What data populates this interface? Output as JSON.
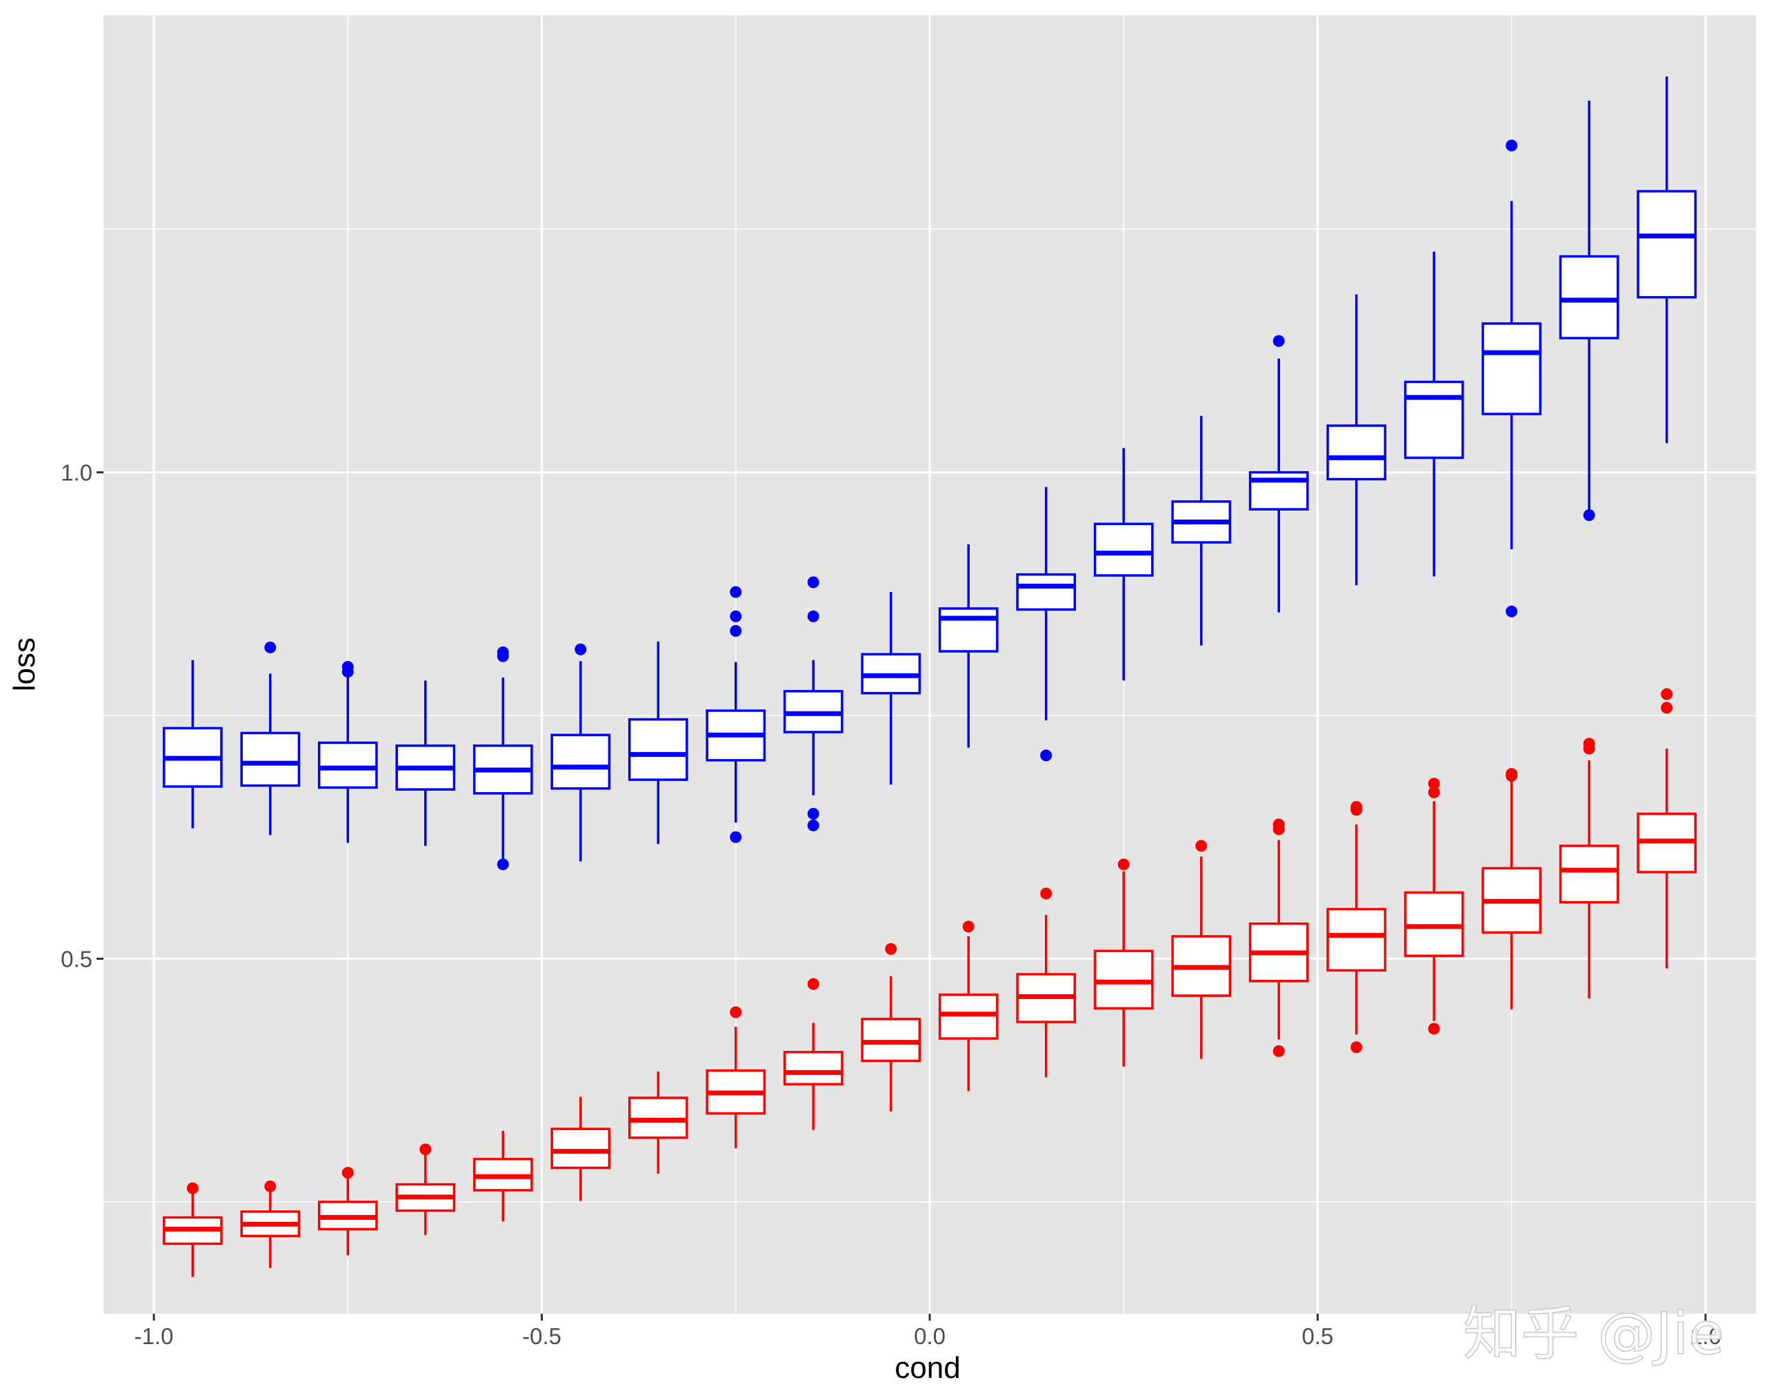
{
  "chart_data": {
    "type": "boxplot",
    "xlabel": "cond",
    "ylabel": "loss",
    "xlim": [
      -1.065,
      1.065
    ],
    "ylim": [
      0.135,
      1.47
    ],
    "x_ticks": [
      -1.0,
      -0.5,
      0.0,
      0.5,
      1.0
    ],
    "x_tick_labels": [
      "-1.0",
      "-0.5",
      "0.0",
      "0.5",
      "1.0"
    ],
    "y_ticks": [
      0.5,
      1.0
    ],
    "y_tick_labels": [
      "0.5",
      "1.0"
    ],
    "y_minor_gridlines": [
      0.25,
      0.75,
      1.25
    ],
    "grid": true,
    "background": "#e5e5e5",
    "gridline_color": "#ffffff",
    "box_fill": "#ffffff",
    "x_positions": [
      -0.95,
      -0.85,
      -0.75,
      -0.65,
      -0.55,
      -0.45,
      -0.35,
      -0.25,
      -0.15,
      -0.05,
      0.05,
      0.15,
      0.25,
      0.35,
      0.45,
      0.55,
      0.65,
      0.75,
      0.85,
      0.95
    ],
    "box_width": 0.037,
    "series": [
      {
        "color": "#0000ff",
        "boxes": [
          {
            "whisker_low": 0.634,
            "q1": 0.677,
            "median": 0.706,
            "q3": 0.737,
            "whisker_high": 0.807,
            "outliers": []
          },
          {
            "whisker_low": 0.627,
            "q1": 0.678,
            "median": 0.701,
            "q3": 0.732,
            "whisker_high": 0.793,
            "outliers": [
              0.82
            ]
          },
          {
            "whisker_low": 0.619,
            "q1": 0.676,
            "median": 0.696,
            "q3": 0.722,
            "whisker_high": 0.79,
            "outliers": [
              0.795,
              0.8
            ]
          },
          {
            "whisker_low": 0.616,
            "q1": 0.674,
            "median": 0.696,
            "q3": 0.719,
            "whisker_high": 0.786,
            "outliers": []
          },
          {
            "whisker_low": 0.597,
            "q1": 0.67,
            "median": 0.694,
            "q3": 0.719,
            "whisker_high": 0.789,
            "outliers": [
              0.597,
              0.811,
              0.815
            ]
          },
          {
            "whisker_low": 0.6,
            "q1": 0.675,
            "median": 0.697,
            "q3": 0.73,
            "whisker_high": 0.806,
            "outliers": [
              0.818
            ]
          },
          {
            "whisker_low": 0.618,
            "q1": 0.684,
            "median": 0.71,
            "q3": 0.746,
            "whisker_high": 0.826,
            "outliers": []
          },
          {
            "whisker_low": 0.64,
            "q1": 0.704,
            "median": 0.73,
            "q3": 0.755,
            "whisker_high": 0.805,
            "outliers": [
              0.625,
              0.837,
              0.852,
              0.877
            ]
          },
          {
            "whisker_low": 0.668,
            "q1": 0.733,
            "median": 0.752,
            "q3": 0.775,
            "whisker_high": 0.807,
            "outliers": [
              0.637,
              0.649,
              0.852,
              0.887
            ]
          },
          {
            "whisker_low": 0.679,
            "q1": 0.773,
            "median": 0.791,
            "q3": 0.813,
            "whisker_high": 0.877,
            "outliers": []
          },
          {
            "whisker_low": 0.717,
            "q1": 0.816,
            "median": 0.85,
            "q3": 0.86,
            "whisker_high": 0.926,
            "outliers": []
          },
          {
            "whisker_low": 0.745,
            "q1": 0.859,
            "median": 0.883,
            "q3": 0.895,
            "whisker_high": 0.985,
            "outliers": [
              0.709
            ]
          },
          {
            "whisker_low": 0.786,
            "q1": 0.894,
            "median": 0.917,
            "q3": 0.947,
            "whisker_high": 1.025,
            "outliers": []
          },
          {
            "whisker_low": 0.822,
            "q1": 0.928,
            "median": 0.949,
            "q3": 0.97,
            "whisker_high": 1.058,
            "outliers": []
          },
          {
            "whisker_low": 0.856,
            "q1": 0.962,
            "median": 0.992,
            "q3": 1.0,
            "whisker_high": 1.117,
            "outliers": [
              1.135
            ]
          },
          {
            "whisker_low": 0.884,
            "q1": 0.993,
            "median": 1.015,
            "q3": 1.048,
            "whisker_high": 1.183,
            "outliers": []
          },
          {
            "whisker_low": 0.893,
            "q1": 1.015,
            "median": 1.077,
            "q3": 1.093,
            "whisker_high": 1.227,
            "outliers": []
          },
          {
            "whisker_low": 0.921,
            "q1": 1.06,
            "median": 1.123,
            "q3": 1.153,
            "whisker_high": 1.279,
            "outliers": [
              0.857,
              1.336
            ]
          },
          {
            "whisker_low": 0.96,
            "q1": 1.138,
            "median": 1.177,
            "q3": 1.222,
            "whisker_high": 1.382,
            "outliers": [
              0.956
            ]
          },
          {
            "whisker_low": 1.03,
            "q1": 1.18,
            "median": 1.243,
            "q3": 1.289,
            "whisker_high": 1.407,
            "outliers": []
          }
        ]
      },
      {
        "color": "#ff0000",
        "boxes": [
          {
            "whisker_low": 0.173,
            "q1": 0.207,
            "median": 0.222,
            "q3": 0.234,
            "whisker_high": 0.264,
            "outliers": [
              0.264
            ]
          },
          {
            "whisker_low": 0.182,
            "q1": 0.215,
            "median": 0.227,
            "q3": 0.24,
            "whisker_high": 0.266,
            "outliers": [
              0.266
            ]
          },
          {
            "whisker_low": 0.195,
            "q1": 0.222,
            "median": 0.234,
            "q3": 0.25,
            "whisker_high": 0.28,
            "outliers": [
              0.28
            ]
          },
          {
            "whisker_low": 0.216,
            "q1": 0.241,
            "median": 0.255,
            "q3": 0.268,
            "whisker_high": 0.304,
            "outliers": [
              0.304
            ]
          },
          {
            "whisker_low": 0.23,
            "q1": 0.262,
            "median": 0.276,
            "q3": 0.294,
            "whisker_high": 0.323,
            "outliers": []
          },
          {
            "whisker_low": 0.251,
            "q1": 0.285,
            "median": 0.302,
            "q3": 0.325,
            "whisker_high": 0.358,
            "outliers": []
          },
          {
            "whisker_low": 0.279,
            "q1": 0.316,
            "median": 0.334,
            "q3": 0.357,
            "whisker_high": 0.384,
            "outliers": []
          },
          {
            "whisker_low": 0.305,
            "q1": 0.341,
            "median": 0.362,
            "q3": 0.385,
            "whisker_high": 0.43,
            "outliers": [
              0.445
            ]
          },
          {
            "whisker_low": 0.324,
            "q1": 0.371,
            "median": 0.383,
            "q3": 0.404,
            "whisker_high": 0.434,
            "outliers": [
              0.474
            ]
          },
          {
            "whisker_low": 0.343,
            "q1": 0.395,
            "median": 0.414,
            "q3": 0.438,
            "whisker_high": 0.482,
            "outliers": [
              0.51
            ]
          },
          {
            "whisker_low": 0.364,
            "q1": 0.418,
            "median": 0.443,
            "q3": 0.463,
            "whisker_high": 0.523,
            "outliers": [
              0.533
            ]
          },
          {
            "whisker_low": 0.378,
            "q1": 0.435,
            "median": 0.461,
            "q3": 0.484,
            "whisker_high": 0.545,
            "outliers": [
              0.567
            ]
          },
          {
            "whisker_low": 0.389,
            "q1": 0.449,
            "median": 0.476,
            "q3": 0.508,
            "whisker_high": 0.59,
            "outliers": [
              0.597
            ]
          },
          {
            "whisker_low": 0.397,
            "q1": 0.462,
            "median": 0.491,
            "q3": 0.523,
            "whisker_high": 0.605,
            "outliers": [
              0.616
            ]
          },
          {
            "whisker_low": 0.417,
            "q1": 0.477,
            "median": 0.506,
            "q3": 0.536,
            "whisker_high": 0.622,
            "outliers": [
              0.405,
              0.633,
              0.638
            ]
          },
          {
            "whisker_low": 0.422,
            "q1": 0.488,
            "median": 0.524,
            "q3": 0.551,
            "whisker_high": 0.638,
            "outliers": [
              0.409,
              0.653,
              0.656
            ]
          },
          {
            "whisker_low": 0.436,
            "q1": 0.503,
            "median": 0.533,
            "q3": 0.568,
            "whisker_high": 0.662,
            "outliers": [
              0.428,
              0.671,
              0.68
            ]
          },
          {
            "whisker_low": 0.448,
            "q1": 0.527,
            "median": 0.559,
            "q3": 0.593,
            "whisker_high": 0.684,
            "outliers": [
              0.688,
              0.69
            ]
          },
          {
            "whisker_low": 0.459,
            "q1": 0.558,
            "median": 0.591,
            "q3": 0.616,
            "whisker_high": 0.704,
            "outliers": [
              0.716,
              0.721
            ]
          },
          {
            "whisker_low": 0.49,
            "q1": 0.589,
            "median": 0.621,
            "q3": 0.649,
            "whisker_high": 0.716,
            "outliers": [
              0.758,
              0.772
            ]
          }
        ]
      }
    ]
  },
  "watermark": {
    "text": "知乎 @Jie"
  }
}
